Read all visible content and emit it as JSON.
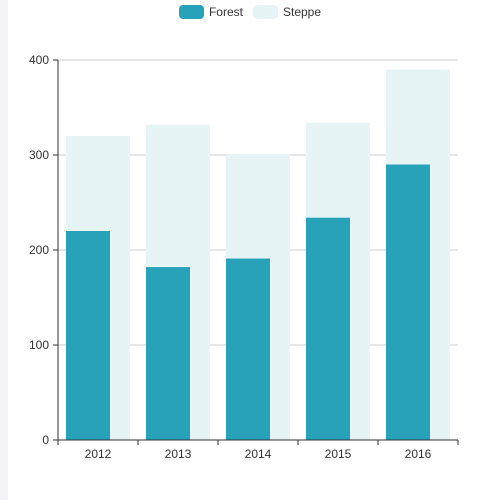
{
  "chart_data": {
    "type": "bar",
    "categories": [
      "2012",
      "2013",
      "2014",
      "2015",
      "2016"
    ],
    "series": [
      {
        "name": "Forest",
        "values": [
          220,
          182,
          191,
          234,
          290
        ],
        "color": "#27a2b8"
      },
      {
        "name": "Steppe",
        "values": [
          320,
          332,
          301,
          334,
          390
        ],
        "color": "#e6f4f6"
      }
    ],
    "ylim": [
      0,
      400
    ],
    "yticks": [
      0,
      100,
      200,
      300,
      400
    ],
    "grid": true,
    "legend_position": "top-center",
    "xlabel": "",
    "ylabel": ""
  }
}
